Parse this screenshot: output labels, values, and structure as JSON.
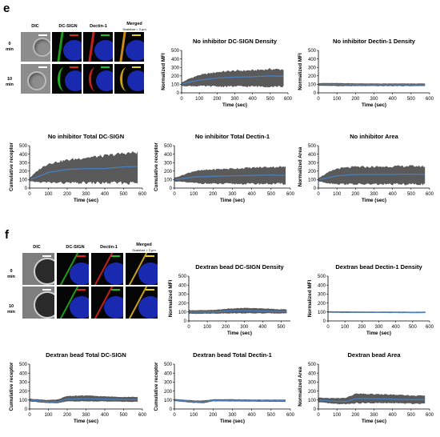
{
  "panels": [
    {
      "letter": "e",
      "micro": {
        "columns": [
          "DIC",
          "DC-SIGN",
          "Dectin-1",
          "Merged"
        ],
        "scalebar": "Scalebar = 3 μm",
        "rows": [
          {
            "line1": "0",
            "line2": "min"
          },
          {
            "line1": "10",
            "line2": "min"
          }
        ]
      }
    },
    {
      "letter": "f",
      "micro": {
        "columns": [
          "DIC",
          "DC-SIGN",
          "Dectin-1",
          "Merged"
        ],
        "scalebar": "Scalebar = 3 μm",
        "rows": [
          {
            "line1": "0",
            "line2": "min"
          },
          {
            "line1": "10",
            "line2": "min"
          }
        ]
      }
    }
  ],
  "chart_data": [
    {
      "id": "e1",
      "type": "area",
      "title": "No inhibitor DC-SIGN Density",
      "xlabel": "Time (sec)",
      "ylabel": "Normalized MFI",
      "xlim": [
        0,
        600
      ],
      "ylim": [
        0,
        500
      ],
      "xticks": [
        0,
        100,
        200,
        300,
        400,
        500,
        600
      ],
      "yticks": [
        0,
        100,
        200,
        300,
        400,
        500
      ],
      "series": [
        {
          "x": [
            0,
            40,
            100,
            200,
            300,
            400,
            500,
            575
          ],
          "y": [
            100,
            125,
            150,
            175,
            185,
            190,
            200,
            195
          ],
          "lower": [
            80,
            80,
            80,
            75,
            75,
            75,
            75,
            75
          ],
          "upper": [
            120,
            165,
            210,
            245,
            260,
            265,
            280,
            275
          ]
        }
      ]
    },
    {
      "id": "e2",
      "type": "area",
      "title": "No inhibitor Dectin-1 Density",
      "xlabel": "Time (sec)",
      "ylabel": "Normalized MFI",
      "xlim": [
        0,
        600
      ],
      "ylim": [
        0,
        500
      ],
      "xticks": [
        0,
        100,
        200,
        300,
        400,
        500,
        600
      ],
      "yticks": [
        0,
        100,
        200,
        300,
        400,
        500
      ],
      "series": [
        {
          "x": [
            0,
            100,
            200,
            300,
            400,
            500,
            575
          ],
          "y": [
            100,
            98,
            96,
            95,
            95,
            94,
            95
          ],
          "lower": [
            85,
            80,
            80,
            80,
            80,
            80,
            80
          ],
          "upper": [
            115,
            115,
            112,
            110,
            110,
            110,
            110
          ]
        }
      ]
    },
    {
      "id": "e3",
      "type": "area",
      "title": "No inhibitor Total DC-SIGN",
      "xlabel": "Time (sec)",
      "ylabel": "Cumulative receptor",
      "xlim": [
        0,
        600
      ],
      "ylim": [
        0,
        500
      ],
      "xticks": [
        0,
        100,
        200,
        300,
        400,
        500,
        600
      ],
      "yticks": [
        0,
        100,
        200,
        300,
        400,
        500
      ],
      "series": [
        {
          "x": [
            0,
            50,
            100,
            200,
            300,
            400,
            500,
            575
          ],
          "y": [
            100,
            140,
            185,
            220,
            230,
            230,
            250,
            255
          ],
          "lower": [
            80,
            70,
            65,
            60,
            60,
            60,
            60,
            60
          ],
          "upper": [
            120,
            220,
            290,
            330,
            360,
            380,
            410,
            420
          ]
        }
      ]
    },
    {
      "id": "e4",
      "type": "area",
      "title": "No inhibitor Total Dectin-1",
      "xlabel": "Time (sec)",
      "ylabel": "Cumulative receptor",
      "xlim": [
        0,
        600
      ],
      "ylim": [
        0,
        500
      ],
      "xticks": [
        0,
        100,
        200,
        300,
        400,
        500,
        600
      ],
      "yticks": [
        0,
        100,
        200,
        300,
        400,
        500
      ],
      "series": [
        {
          "x": [
            0,
            50,
            100,
            200,
            300,
            400,
            500,
            575
          ],
          "y": [
            100,
            115,
            130,
            140,
            145,
            150,
            155,
            150
          ],
          "lower": [
            80,
            70,
            60,
            50,
            50,
            50,
            50,
            50
          ],
          "upper": [
            120,
            160,
            200,
            220,
            230,
            240,
            250,
            250
          ]
        }
      ]
    },
    {
      "id": "e5",
      "type": "area",
      "title": "No inhibitor Area",
      "xlabel": "Time (sec)",
      "ylabel": "Normalized Area",
      "xlim": [
        0,
        600
      ],
      "ylim": [
        0,
        500
      ],
      "xticks": [
        0,
        100,
        200,
        300,
        400,
        500,
        600
      ],
      "yticks": [
        0,
        100,
        200,
        300,
        400,
        500
      ],
      "series": [
        {
          "x": [
            0,
            50,
            100,
            200,
            300,
            400,
            500,
            575
          ],
          "y": [
            100,
            120,
            145,
            160,
            160,
            160,
            165,
            160
          ],
          "lower": [
            80,
            60,
            50,
            45,
            45,
            45,
            45,
            45
          ],
          "upper": [
            120,
            180,
            230,
            250,
            250,
            255,
            260,
            255
          ]
        }
      ]
    },
    {
      "id": "f1",
      "type": "area",
      "title": "Dextran bead DC-SIGN Density",
      "xlabel": "Time (sec)",
      "ylabel": "Normalized MFI",
      "xlim": [
        0,
        550
      ],
      "ylim": [
        0,
        500
      ],
      "xticks": [
        0,
        100,
        200,
        300,
        400,
        500
      ],
      "yticks": [
        0,
        100,
        200,
        300,
        400,
        500
      ],
      "series": [
        {
          "x": [
            0,
            100,
            150,
            200,
            300,
            400,
            500,
            530
          ],
          "y": [
            100,
            100,
            100,
            110,
            115,
            110,
            105,
            105
          ],
          "lower": [
            80,
            82,
            82,
            85,
            85,
            85,
            85,
            85
          ],
          "upper": [
            120,
            120,
            125,
            135,
            145,
            140,
            130,
            130
          ]
        }
      ]
    },
    {
      "id": "f2",
      "type": "area",
      "title": "Dextran bead Dectin-1 Density",
      "xlabel": "Time (sec)",
      "ylabel": "Normalized MFI",
      "xlim": [
        0,
        600
      ],
      "ylim": [
        0,
        500
      ],
      "xticks": [
        0,
        100,
        200,
        300,
        400,
        500,
        600
      ],
      "yticks": [
        0,
        100,
        200,
        300,
        400,
        500
      ],
      "series": [
        {
          "x": [
            0,
            100,
            200,
            300,
            400,
            500,
            575
          ],
          "y": [
            100,
            98,
            97,
            96,
            96,
            95,
            95
          ],
          "lower": [
            92,
            90,
            90,
            90,
            89,
            88,
            88
          ],
          "upper": [
            108,
            106,
            105,
            104,
            104,
            103,
            103
          ]
        }
      ]
    },
    {
      "id": "f3",
      "type": "area",
      "title": "Dextran bead Total DC-SIGN",
      "xlabel": "Time (sec)",
      "ylabel": "Cumulative receptor",
      "xlim": [
        0,
        600
      ],
      "ylim": [
        0,
        500
      ],
      "xticks": [
        0,
        100,
        200,
        300,
        400,
        500,
        600
      ],
      "yticks": [
        0,
        100,
        200,
        300,
        400,
        500
      ],
      "series": [
        {
          "x": [
            0,
            100,
            150,
            200,
            300,
            400,
            500,
            575
          ],
          "y": [
            100,
            80,
            80,
            110,
            115,
            110,
            105,
            105
          ],
          "lower": [
            85,
            65,
            65,
            85,
            85,
            85,
            80,
            80
          ],
          "upper": [
            115,
            100,
            105,
            145,
            150,
            140,
            135,
            135
          ]
        }
      ]
    },
    {
      "id": "f4",
      "type": "area",
      "title": "Dextran bead Total Dectin-1",
      "xlabel": "Time (sec)",
      "ylabel": "Cumulative receptor",
      "xlim": [
        0,
        600
      ],
      "ylim": [
        0,
        500
      ],
      "xticks": [
        0,
        100,
        200,
        300,
        400,
        500,
        600
      ],
      "yticks": [
        0,
        100,
        200,
        300,
        400,
        500
      ],
      "series": [
        {
          "x": [
            0,
            100,
            150,
            200,
            300,
            400,
            500,
            575
          ],
          "y": [
            100,
            82,
            80,
            95,
            95,
            93,
            92,
            92
          ],
          "lower": [
            88,
            68,
            65,
            85,
            85,
            82,
            80,
            80
          ],
          "upper": [
            112,
            95,
            95,
            108,
            108,
            105,
            104,
            104
          ]
        }
      ]
    },
    {
      "id": "f5",
      "type": "area",
      "title": "Dextran bead Area",
      "xlabel": "Time (sec)",
      "ylabel": "Normalized Area",
      "xlim": [
        0,
        600
      ],
      "ylim": [
        0,
        500
      ],
      "xticks": [
        0,
        100,
        200,
        300,
        400,
        500,
        600
      ],
      "yticks": [
        0,
        100,
        200,
        300,
        400,
        500
      ],
      "series": [
        {
          "x": [
            0,
            100,
            150,
            200,
            300,
            400,
            500,
            575
          ],
          "y": [
            100,
            85,
            85,
            115,
            115,
            110,
            105,
            105
          ],
          "lower": [
            75,
            55,
            55,
            65,
            65,
            65,
            60,
            60
          ],
          "upper": [
            125,
            120,
            125,
            170,
            165,
            160,
            150,
            150
          ]
        }
      ]
    }
  ],
  "colors": {
    "band": "#5a5a5a",
    "mean": "#4a7fc1",
    "dic": "#8a8a8a",
    "nucleus": "#2e3cc8",
    "green": "#22c21e",
    "red": "#e1261c",
    "yellow": "#e6d21c"
  }
}
